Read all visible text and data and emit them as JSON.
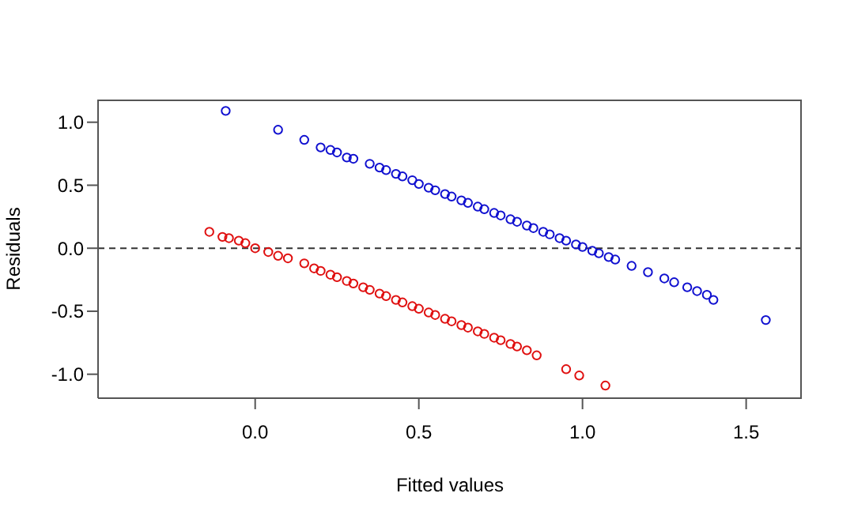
{
  "chart_data": {
    "type": "scatter",
    "xlabel": "Fitted values",
    "ylabel": "Residuals",
    "xlim": [
      -0.48,
      1.67
    ],
    "ylim": [
      -1.19,
      1.18
    ],
    "xticks": [
      {
        "value": 0,
        "label": "0.0"
      },
      {
        "value": 0.5,
        "label": "0.5"
      },
      {
        "value": 1,
        "label": "1.0"
      },
      {
        "value": 1.5,
        "label": "1.5"
      }
    ],
    "yticks": [
      {
        "value": -1,
        "label": "-1.0"
      },
      {
        "value": -0.5,
        "label": "-0.5"
      },
      {
        "value": 0,
        "label": "0.0"
      },
      {
        "value": 0.5,
        "label": "0.5"
      },
      {
        "value": 1,
        "label": "1.0"
      }
    ],
    "grid": false,
    "legend": false,
    "marker": "circle",
    "ref_lines": [
      {
        "axis": "y",
        "value": 0,
        "color": "#333333",
        "line_style": "dashed"
      }
    ],
    "series": [
      {
        "color": "#1010d0",
        "x": [
          -0.09,
          0.07,
          0.15,
          0.2,
          0.23,
          0.25,
          0.28,
          0.3,
          0.35,
          0.38,
          0.4,
          0.43,
          0.45,
          0.48,
          0.5,
          0.53,
          0.55,
          0.58,
          0.6,
          0.63,
          0.65,
          0.68,
          0.7,
          0.73,
          0.75,
          0.78,
          0.8,
          0.83,
          0.85,
          0.88,
          0.9,
          0.93,
          0.95,
          0.98,
          1.0,
          1.03,
          1.05,
          1.08,
          1.1,
          1.15,
          1.2,
          1.25,
          1.28,
          1.32,
          1.35,
          1.38,
          1.4,
          1.56
        ],
        "values": [
          1.09,
          0.94,
          0.86,
          0.8,
          0.78,
          0.76,
          0.72,
          0.71,
          0.67,
          0.64,
          0.62,
          0.59,
          0.57,
          0.54,
          0.51,
          0.48,
          0.46,
          0.43,
          0.41,
          0.38,
          0.36,
          0.33,
          0.31,
          0.28,
          0.26,
          0.23,
          0.21,
          0.18,
          0.16,
          0.13,
          0.11,
          0.08,
          0.06,
          0.03,
          0.01,
          -0.02,
          -0.04,
          -0.07,
          -0.09,
          -0.14,
          -0.19,
          -0.24,
          -0.27,
          -0.31,
          -0.34,
          -0.37,
          -0.41,
          -0.57
        ]
      },
      {
        "color": "#e01010",
        "x": [
          -0.14,
          -0.1,
          -0.08,
          -0.05,
          -0.03,
          0.0,
          0.04,
          0.07,
          0.1,
          0.15,
          0.18,
          0.2,
          0.23,
          0.25,
          0.28,
          0.3,
          0.33,
          0.35,
          0.38,
          0.4,
          0.43,
          0.45,
          0.48,
          0.5,
          0.53,
          0.55,
          0.58,
          0.6,
          0.63,
          0.65,
          0.68,
          0.7,
          0.73,
          0.75,
          0.78,
          0.8,
          0.83,
          0.86,
          0.95,
          0.99,
          1.07
        ],
        "values": [
          0.13,
          0.09,
          0.08,
          0.06,
          0.04,
          0.0,
          -0.03,
          -0.06,
          -0.08,
          -0.12,
          -0.16,
          -0.18,
          -0.21,
          -0.23,
          -0.26,
          -0.28,
          -0.31,
          -0.33,
          -0.36,
          -0.38,
          -0.41,
          -0.43,
          -0.46,
          -0.48,
          -0.51,
          -0.53,
          -0.56,
          -0.58,
          -0.61,
          -0.63,
          -0.66,
          -0.68,
          -0.71,
          -0.73,
          -0.76,
          -0.78,
          -0.81,
          -0.85,
          -0.96,
          -1.01,
          -1.09
        ]
      }
    ]
  }
}
